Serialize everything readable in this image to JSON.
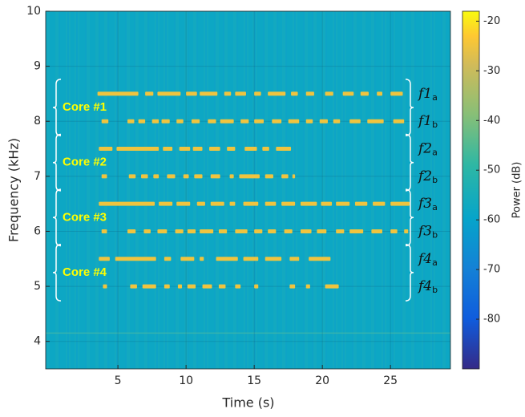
{
  "chart_data": {
    "type": "spectrogram",
    "xlabel": "Time (s)",
    "ylabel": "Frequency (kHz)",
    "colorbar_label": "Power (dB)",
    "xlim": [
      -0.3,
      29.4
    ],
    "ylim": [
      3.5,
      10
    ],
    "xticks": [
      5,
      10,
      15,
      20,
      25
    ],
    "yticks": [
      4,
      5,
      6,
      7,
      8,
      9,
      10
    ],
    "clim": [
      -90,
      -18
    ],
    "cticks": [
      -80,
      -70,
      -60,
      -50,
      -40,
      -30,
      -20
    ],
    "colormap": "parula",
    "grid": true,
    "background_power": -58,
    "cores": [
      {
        "label": "Core #1",
        "tracks": [
          {
            "name": "f1",
            "sub": "a",
            "frequency": 8.5,
            "power": -25,
            "segments": [
              [
                3.5,
                6.5
              ],
              [
                7,
                7.6
              ],
              [
                7.9,
                9.6
              ],
              [
                10,
                10.8
              ],
              [
                11,
                12.3
              ],
              [
                12.8,
                13.3
              ],
              [
                13.6,
                14.4
              ],
              [
                15,
                15.5
              ],
              [
                16,
                17.3
              ],
              [
                17.7,
                18.2
              ],
              [
                18.8,
                19.4
              ],
              [
                20.2,
                20.8
              ],
              [
                21.5,
                22.3
              ],
              [
                22.8,
                23.4
              ],
              [
                24,
                24.4
              ],
              [
                25,
                25.9
              ]
            ]
          },
          {
            "name": "f1",
            "sub": "b",
            "frequency": 8,
            "power": -25,
            "segments": [
              [
                3.8,
                4.3
              ],
              [
                5.7,
                6.2
              ],
              [
                6.5,
                7
              ],
              [
                7.5,
                8
              ],
              [
                8.2,
                8.8
              ],
              [
                9.3,
                9.8
              ],
              [
                10.4,
                11
              ],
              [
                11.6,
                12.2
              ],
              [
                12.5,
                13.5
              ],
              [
                14,
                14.6
              ],
              [
                15,
                15.7
              ],
              [
                16.3,
                17
              ],
              [
                17.5,
                18.3
              ],
              [
                18.8,
                19.3
              ],
              [
                19.8,
                20.4
              ],
              [
                20.8,
                21.3
              ],
              [
                22,
                22.8
              ],
              [
                23.3,
                24.5
              ],
              [
                25.2,
                26
              ]
            ]
          }
        ]
      },
      {
        "label": "Core #2",
        "tracks": [
          {
            "name": "f2",
            "sub": "a",
            "frequency": 7.5,
            "power": -25,
            "segments": [
              [
                3.6,
                4.6
              ],
              [
                4.9,
                8
              ],
              [
                8.3,
                9
              ],
              [
                9.5,
                10.3
              ],
              [
                10.5,
                11.2
              ],
              [
                11.7,
                12.5
              ],
              [
                13,
                13.6
              ],
              [
                14.3,
                15.2
              ],
              [
                15.6,
                16.1
              ],
              [
                16.6,
                17.7
              ]
            ]
          },
          {
            "name": "f2",
            "sub": "b",
            "frequency": 7,
            "power": -25,
            "segments": [
              [
                3.8,
                4.2
              ],
              [
                5.8,
                6.3
              ],
              [
                6.7,
                7.2
              ],
              [
                7.6,
                8
              ],
              [
                8.6,
                9.2
              ],
              [
                9.8,
                10.2
              ],
              [
                10.6,
                11.2
              ],
              [
                11.8,
                12.5
              ],
              [
                13.2,
                13.5
              ],
              [
                13.9,
                15.4
              ],
              [
                15.8,
                16.4
              ],
              [
                17,
                17.5
              ],
              [
                17.8,
                18
              ]
            ]
          }
        ]
      },
      {
        "label": "Core #3",
        "tracks": [
          {
            "name": "f3",
            "sub": "a",
            "frequency": 6.5,
            "power": -25,
            "segments": [
              [
                3.6,
                7.7
              ],
              [
                8,
                9
              ],
              [
                9.3,
                10.3
              ],
              [
                10.8,
                11.4
              ],
              [
                11.8,
                12.8
              ],
              [
                13.2,
                13.6
              ],
              [
                14.2,
                15.3
              ],
              [
                15.8,
                16.6
              ],
              [
                17,
                18
              ],
              [
                18.4,
                19.6
              ],
              [
                19.9,
                20.7
              ],
              [
                21,
                22
              ],
              [
                22.4,
                23.3
              ],
              [
                23.7,
                24.6
              ],
              [
                25,
                26.4
              ]
            ]
          },
          {
            "name": "f3",
            "sub": "b",
            "frequency": 6,
            "power": -25,
            "segments": [
              [
                3.8,
                4.2
              ],
              [
                5.7,
                6.3
              ],
              [
                6.9,
                7.4
              ],
              [
                7.9,
                8.6
              ],
              [
                9.2,
                9.8
              ],
              [
                10.1,
                10.7
              ],
              [
                11,
                12
              ],
              [
                12.4,
                13
              ],
              [
                13.6,
                14.5
              ],
              [
                15,
                15.6
              ],
              [
                16,
                16.6
              ],
              [
                17.2,
                17.8
              ],
              [
                18.4,
                19.2
              ],
              [
                19.6,
                20.3
              ],
              [
                21,
                21.6
              ],
              [
                22,
                23
              ],
              [
                23.6,
                24.4
              ],
              [
                25,
                25.5
              ],
              [
                26,
                26.3
              ]
            ]
          }
        ]
      },
      {
        "label": "Core #4",
        "tracks": [
          {
            "name": "f4",
            "sub": "a",
            "frequency": 5.5,
            "power": -25,
            "segments": [
              [
                3.6,
                4.4
              ],
              [
                4.8,
                7.8
              ],
              [
                8.4,
                8.9
              ],
              [
                9.6,
                10.6
              ],
              [
                11,
                11.3
              ],
              [
                12.2,
                13.8
              ],
              [
                14.2,
                15.3
              ],
              [
                15.8,
                17
              ],
              [
                17.6,
                18.3
              ],
              [
                19,
                20.6
              ]
            ]
          },
          {
            "name": "f4",
            "sub": "b",
            "frequency": 5,
            "power": -25,
            "segments": [
              [
                3.9,
                4.2
              ],
              [
                5.9,
                6.4
              ],
              [
                6.8,
                7.8
              ],
              [
                8.4,
                8.8
              ],
              [
                9.4,
                9.7
              ],
              [
                10.1,
                10.7
              ],
              [
                11.2,
                11.9
              ],
              [
                12.4,
                12.9
              ],
              [
                13.6,
                14
              ],
              [
                15,
                15.3
              ],
              [
                17.6,
                18
              ],
              [
                18.8,
                19.1
              ],
              [
                20.2,
                21.2
              ]
            ]
          }
        ]
      }
    ]
  }
}
